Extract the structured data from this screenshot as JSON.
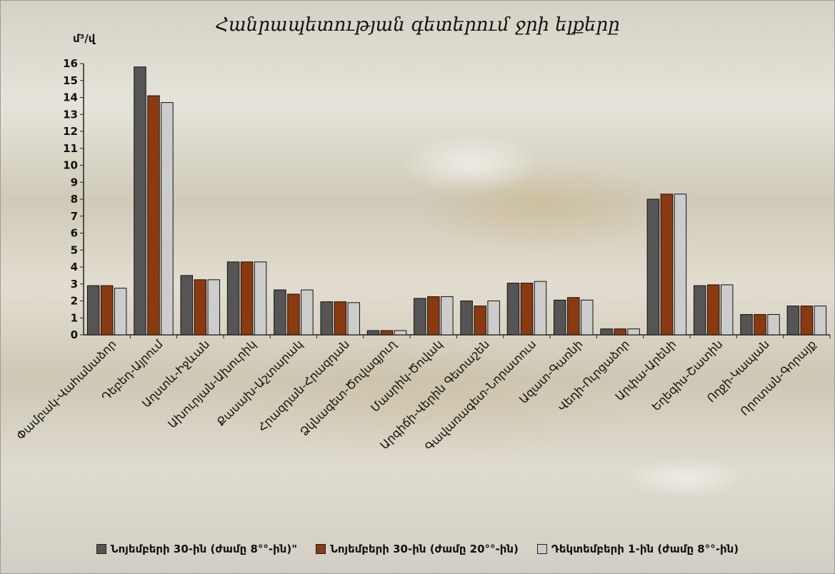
{
  "chart_data": {
    "type": "bar",
    "title": "Հանրապետության գետերում ջրի ելքերը",
    "ylabel": "մ³/վ",
    "xlabel": "",
    "ylim": [
      0,
      16
    ],
    "yticks": [
      0,
      1,
      2,
      3,
      4,
      5,
      6,
      7,
      8,
      9,
      10,
      11,
      12,
      13,
      14,
      15,
      16
    ],
    "grid": false,
    "legend_position": "bottom",
    "categories": [
      "Փամբակ-Վահանաձոր",
      "Դեբեդ-Այրում",
      "Աղստև-Իջևան",
      "Ախուրյան-Ախուրիկ",
      "Քասախ-Աշտարակ",
      "Հրազդան-Հրազդան",
      "Ձկնագետ-Ծովագյուղ",
      "Մասրիկ-Ծովակ",
      "Արգիճի-Վերին Գետաշեն",
      "Գավառագետ-Նորատուս",
      "Ազատ-Գառնի",
      "Վեդի-Ուրցաձոր",
      "Արփա-Արենի",
      "Եղեգիս-Շատին",
      "Ողջի-Կապան",
      "Որոտան-Գորայք"
    ],
    "series": [
      {
        "name": "Նոյեմբերի 30-ին (ժամը 8°°-ին)\"",
        "color": "#555555",
        "values": [
          2.9,
          15.8,
          3.5,
          4.3,
          2.65,
          1.95,
          0.25,
          2.15,
          2.0,
          3.05,
          2.05,
          0.35,
          8.0,
          2.9,
          1.2,
          1.7
        ]
      },
      {
        "name": "Նոյեմբերի 30-ին (ժամը 20°°-ին)",
        "color": "#8B3A0F",
        "values": [
          2.9,
          14.1,
          3.25,
          4.3,
          2.4,
          1.95,
          0.25,
          2.25,
          1.7,
          3.05,
          2.2,
          0.35,
          8.3,
          2.95,
          1.2,
          1.7
        ]
      },
      {
        "name": "Դեկտեմբերի 1-ին (ժամը 8°°-ին)",
        "color": "#CCCCCC",
        "values": [
          2.75,
          13.7,
          3.25,
          4.3,
          2.65,
          1.9,
          0.25,
          2.25,
          2.0,
          3.15,
          2.05,
          0.35,
          8.3,
          2.95,
          1.2,
          1.7
        ]
      }
    ]
  }
}
